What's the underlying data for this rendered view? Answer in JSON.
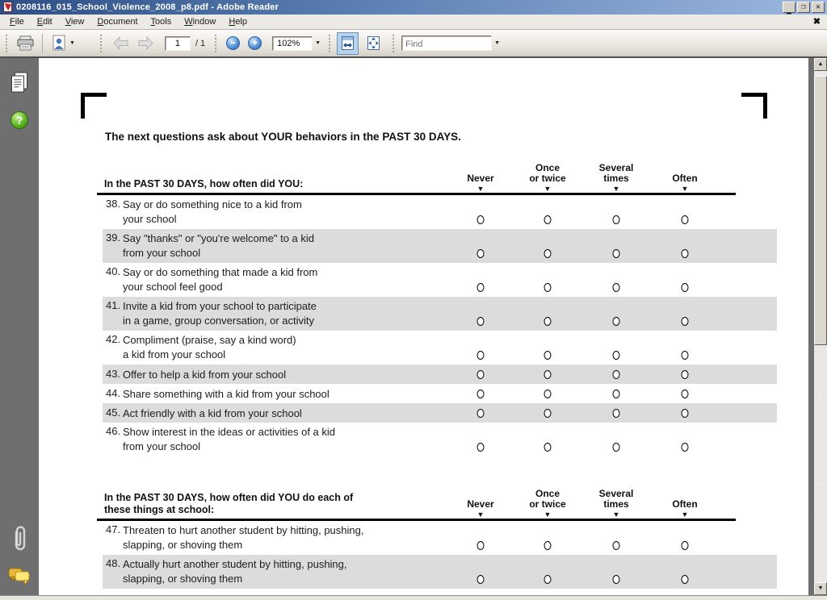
{
  "window": {
    "title": "0208116_015_School_Violence_2008_p8.pdf - Adobe Reader"
  },
  "menu": {
    "items": [
      "File",
      "Edit",
      "View",
      "Document",
      "Tools",
      "Window",
      "Help"
    ]
  },
  "toolbar": {
    "page_current": "1",
    "page_total": "/ 1",
    "zoom_level": "102%",
    "find_placeholder": "Find"
  },
  "colors": {
    "shaded_row": "#dcdcdc",
    "active_tool_bg": "#b9d2ec",
    "titlebar_accent": "#2d4f86"
  },
  "page": {
    "heading": "The next questions ask about YOUR behaviors in the PAST 30 DAYS.",
    "answer_options": [
      "Never",
      "Once or twice",
      "Several times",
      "Often"
    ],
    "sections": [
      {
        "prompt_lines": [
          "In the PAST 30 DAYS, how often did YOU:"
        ],
        "columns": [
          [
            "Never"
          ],
          [
            "Once",
            "or twice"
          ],
          [
            "Several",
            "times"
          ],
          [
            "Often"
          ]
        ],
        "rows": [
          {
            "num": "38.",
            "lines": [
              "Say or do something nice to a kid from",
              "your school"
            ],
            "shaded": false
          },
          {
            "num": "39.",
            "lines": [
              "Say \"thanks\" or \"you're welcome\" to a kid",
              "from your school"
            ],
            "shaded": true
          },
          {
            "num": "40.",
            "lines": [
              "Say or do something that made a kid from",
              "your school feel good"
            ],
            "shaded": false
          },
          {
            "num": "41.",
            "lines": [
              "Invite a kid from your school to participate",
              "in a game, group conversation, or activity"
            ],
            "shaded": true
          },
          {
            "num": "42.",
            "lines": [
              "Compliment (praise, say a kind word)",
              "a kid from your school"
            ],
            "shaded": false
          },
          {
            "num": "43.",
            "lines": [
              "Offer to help a kid from your school"
            ],
            "shaded": true
          },
          {
            "num": "44.",
            "lines": [
              "Share something with a kid from your school"
            ],
            "shaded": false
          },
          {
            "num": "45.",
            "lines": [
              "Act friendly with a kid from your school"
            ],
            "shaded": true
          },
          {
            "num": "46.",
            "lines": [
              "Show interest in the ideas or activities of a kid",
              "from your school"
            ],
            "shaded": false
          }
        ]
      },
      {
        "prompt_lines": [
          "In the PAST 30 DAYS, how often did YOU do each of",
          "these things at school:"
        ],
        "columns": [
          [
            "Never"
          ],
          [
            "Once",
            "or twice"
          ],
          [
            "Several",
            "times"
          ],
          [
            "Often"
          ]
        ],
        "rows": [
          {
            "num": "47.",
            "lines": [
              "Threaten to hurt another student by hitting, pushing,",
              "slapping, or shoving them"
            ],
            "shaded": false
          },
          {
            "num": "48.",
            "lines": [
              "Actually hurt another student by hitting, pushing,",
              "slapping, or shoving them"
            ],
            "shaded": true
          }
        ]
      }
    ]
  }
}
